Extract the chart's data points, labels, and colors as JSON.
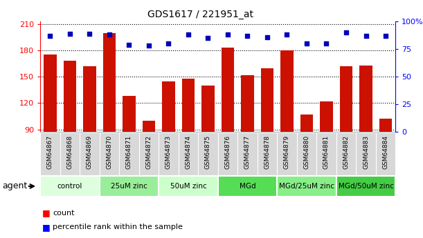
{
  "title": "GDS1617 / 221951_at",
  "samples": [
    "GSM64867",
    "GSM64868",
    "GSM64869",
    "GSM64870",
    "GSM64871",
    "GSM64872",
    "GSM64873",
    "GSM64874",
    "GSM64875",
    "GSM64876",
    "GSM64877",
    "GSM64878",
    "GSM64879",
    "GSM64880",
    "GSM64881",
    "GSM64882",
    "GSM64883",
    "GSM64884"
  ],
  "counts": [
    175,
    168,
    162,
    200,
    128,
    100,
    145,
    148,
    140,
    183,
    152,
    160,
    180,
    107,
    122,
    162,
    163,
    102
  ],
  "percentiles": [
    87,
    89,
    89,
    88,
    79,
    78,
    80,
    88,
    85,
    88,
    87,
    86,
    88,
    80,
    80,
    90,
    87,
    87
  ],
  "ylim_left": [
    87,
    213
  ],
  "ylim_right": [
    0,
    100
  ],
  "yticks_left": [
    90,
    120,
    150,
    180,
    210
  ],
  "yticks_right": [
    0,
    25,
    50,
    75,
    100
  ],
  "bar_color": "#cc1100",
  "dot_color": "#0000bb",
  "groups": [
    {
      "label": "control",
      "start": 0,
      "end": 3,
      "color": "#ddffdd"
    },
    {
      "label": "25uM zinc",
      "start": 3,
      "end": 6,
      "color": "#99ee99"
    },
    {
      "label": "50uM zinc",
      "start": 6,
      "end": 9,
      "color": "#ccffcc"
    },
    {
      "label": "MGd",
      "start": 9,
      "end": 12,
      "color": "#55dd55"
    },
    {
      "label": "MGd/25uM zinc",
      "start": 12,
      "end": 15,
      "color": "#88ee88"
    },
    {
      "label": "MGd/50uM zinc",
      "start": 15,
      "end": 18,
      "color": "#44cc44"
    }
  ],
  "agent_label": "agent",
  "legend_count_label": "count",
  "legend_pct_label": "percentile rank within the sample",
  "tick_bg_color": "#d8d8d8"
}
